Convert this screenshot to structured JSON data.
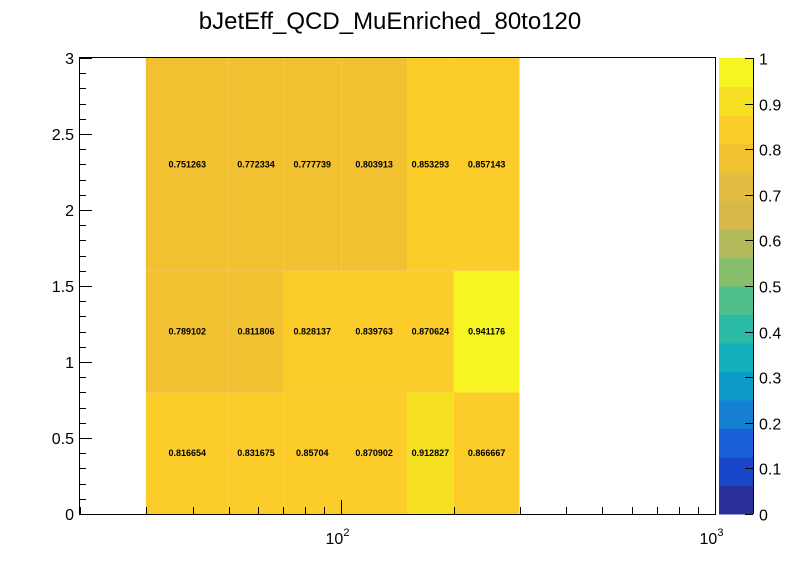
{
  "chart_data": {
    "type": "heatmap",
    "title": "bJetEff_QCD_MuEnriched_80to120",
    "x_scale": "log",
    "x_range": [
      20,
      1000
    ],
    "y_range": [
      0,
      3
    ],
    "x_edges": [
      30,
      50,
      70,
      100,
      150,
      200,
      300
    ],
    "y_edges": [
      0,
      0.8,
      1.6,
      3.0
    ],
    "z_range": [
      0,
      1
    ],
    "rows": [
      {
        "y_bin": [
          0,
          0.8
        ],
        "values": [
          0.816654,
          0.831675,
          0.85704,
          0.870902,
          0.912827,
          0.866667
        ]
      },
      {
        "y_bin": [
          0.8,
          1.6
        ],
        "values": [
          0.789102,
          0.811806,
          0.828137,
          0.839763,
          0.870624,
          0.941176
        ]
      },
      {
        "y_bin": [
          1.6,
          3.0
        ],
        "values": [
          0.751263,
          0.772334,
          0.777739,
          0.803913,
          0.853293,
          0.857143
        ]
      }
    ],
    "cell_labels": [
      [
        "0.816654",
        "0.831675",
        "0.85704",
        "0.870902",
        "0.912827",
        "0.866667"
      ],
      [
        "0.789102",
        "0.811806",
        "0.828137",
        "0.839763",
        "0.870624",
        "0.941176"
      ],
      [
        "0.751263",
        "0.772334",
        "0.777739",
        "0.803913",
        "0.853293",
        "0.857143"
      ]
    ],
    "y_ticks": [
      {
        "value": 0,
        "label": "0"
      },
      {
        "value": 0.5,
        "label": "0.5"
      },
      {
        "value": 1,
        "label": "1"
      },
      {
        "value": 1.5,
        "label": "1.5"
      },
      {
        "value": 2,
        "label": "2"
      },
      {
        "value": 2.5,
        "label": "2.5"
      },
      {
        "value": 3,
        "label": "3"
      }
    ],
    "x_major_ticks": [
      {
        "value": 100,
        "base": "10",
        "exp": "2"
      },
      {
        "value": 1000,
        "base": "10",
        "exp": "3"
      }
    ],
    "x_minor_ticks": [
      20,
      30,
      40,
      50,
      60,
      70,
      80,
      90,
      200,
      300,
      400,
      500,
      600,
      700,
      800,
      900
    ],
    "colorbar_ticks": [
      {
        "value": 0,
        "label": "0"
      },
      {
        "value": 0.1,
        "label": "0.1"
      },
      {
        "value": 0.2,
        "label": "0.2"
      },
      {
        "value": 0.3,
        "label": "0.3"
      },
      {
        "value": 0.4,
        "label": "0.4"
      },
      {
        "value": 0.5,
        "label": "0.5"
      },
      {
        "value": 0.6,
        "label": "0.6"
      },
      {
        "value": 0.7,
        "label": "0.7"
      },
      {
        "value": 0.8,
        "label": "0.8"
      },
      {
        "value": 0.9,
        "label": "0.9"
      },
      {
        "value": 1,
        "label": "1"
      }
    ],
    "palette": [
      "#2a2f9c",
      "#1746c9",
      "#1a5fd8",
      "#1580d2",
      "#0c9ac8",
      "#13afbb",
      "#2bbaa4",
      "#50bf8c",
      "#88be6c",
      "#b3ba5c",
      "#d6b84b",
      "#e3bc44",
      "#f2c132",
      "#fbcc2a",
      "#f5e024",
      "#f6f421"
    ],
    "grid": false,
    "legend": "colorbar-right"
  }
}
